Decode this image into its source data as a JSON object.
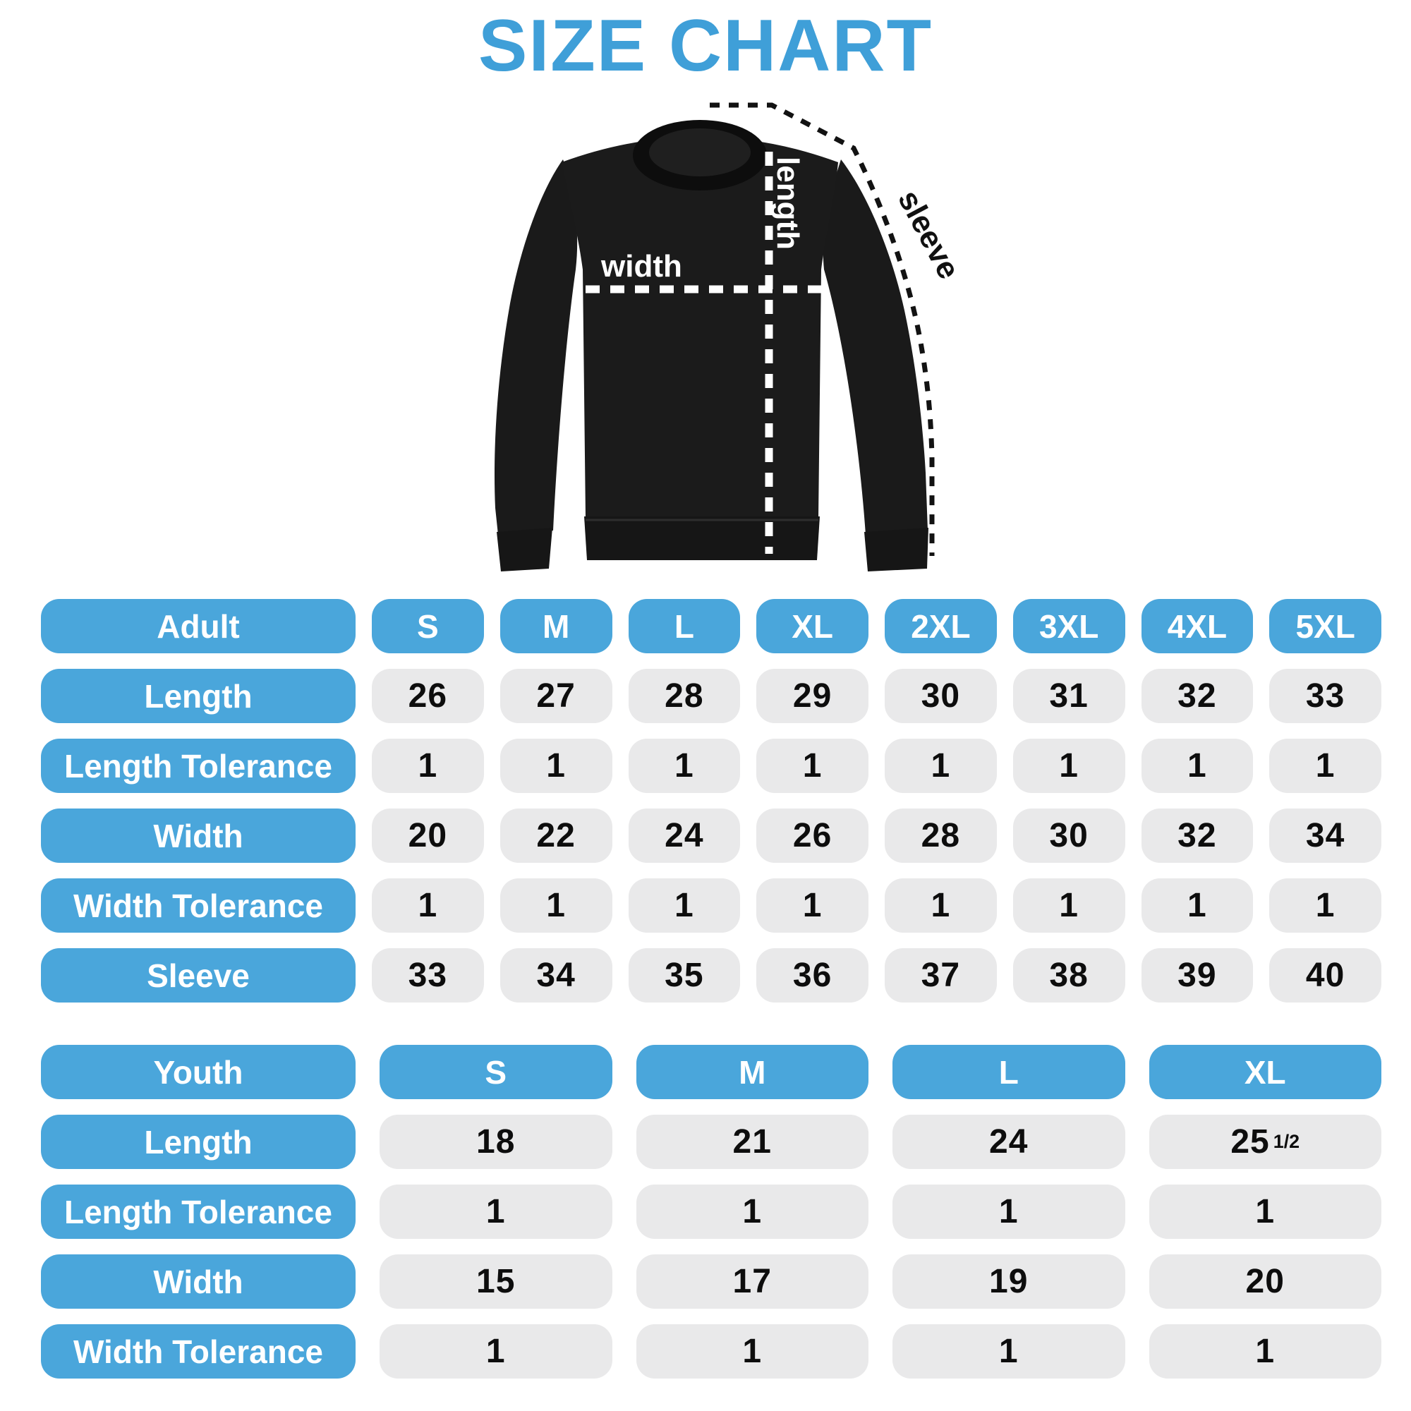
{
  "title": "SIZE CHART",
  "colors": {
    "title_blue": "#3f9fd8",
    "pill_blue": "#4aa6db",
    "cell_gray": "#e9e9ea",
    "cell_text": "#0d0d0d",
    "garment_black": "#1a1a1a"
  },
  "diagram": {
    "length_label": "length",
    "width_label": "width",
    "sleeve_label": "sleeve"
  },
  "adult_table": {
    "header": [
      "Adult",
      "S",
      "M",
      "L",
      "XL",
      "2XL",
      "3XL",
      "4XL",
      "5XL"
    ],
    "rows": [
      {
        "label": "Length",
        "values": [
          "26",
          "27",
          "28",
          "29",
          "30",
          "31",
          "32",
          "33"
        ]
      },
      {
        "label": "Length Tolerance",
        "values": [
          "1",
          "1",
          "1",
          "1",
          "1",
          "1",
          "1",
          "1"
        ]
      },
      {
        "label": "Width",
        "values": [
          "20",
          "22",
          "24",
          "26",
          "28",
          "30",
          "32",
          "34"
        ]
      },
      {
        "label": "Width Tolerance",
        "values": [
          "1",
          "1",
          "1",
          "1",
          "1",
          "1",
          "1",
          "1"
        ]
      },
      {
        "label": "Sleeve",
        "values": [
          "33",
          "34",
          "35",
          "36",
          "37",
          "38",
          "39",
          "40"
        ]
      }
    ]
  },
  "youth_table": {
    "header": [
      "Youth",
      "S",
      "M",
      "L",
      "XL"
    ],
    "rows": [
      {
        "label": "Length",
        "values": [
          "18",
          "21",
          "24",
          "25½"
        ]
      },
      {
        "label": "Length Tolerance",
        "values": [
          "1",
          "1",
          "1",
          "1"
        ]
      },
      {
        "label": "Width",
        "values": [
          "15",
          "17",
          "19",
          "20"
        ]
      },
      {
        "label": "Width Tolerance",
        "values": [
          "1",
          "1",
          "1",
          "1"
        ]
      }
    ]
  }
}
